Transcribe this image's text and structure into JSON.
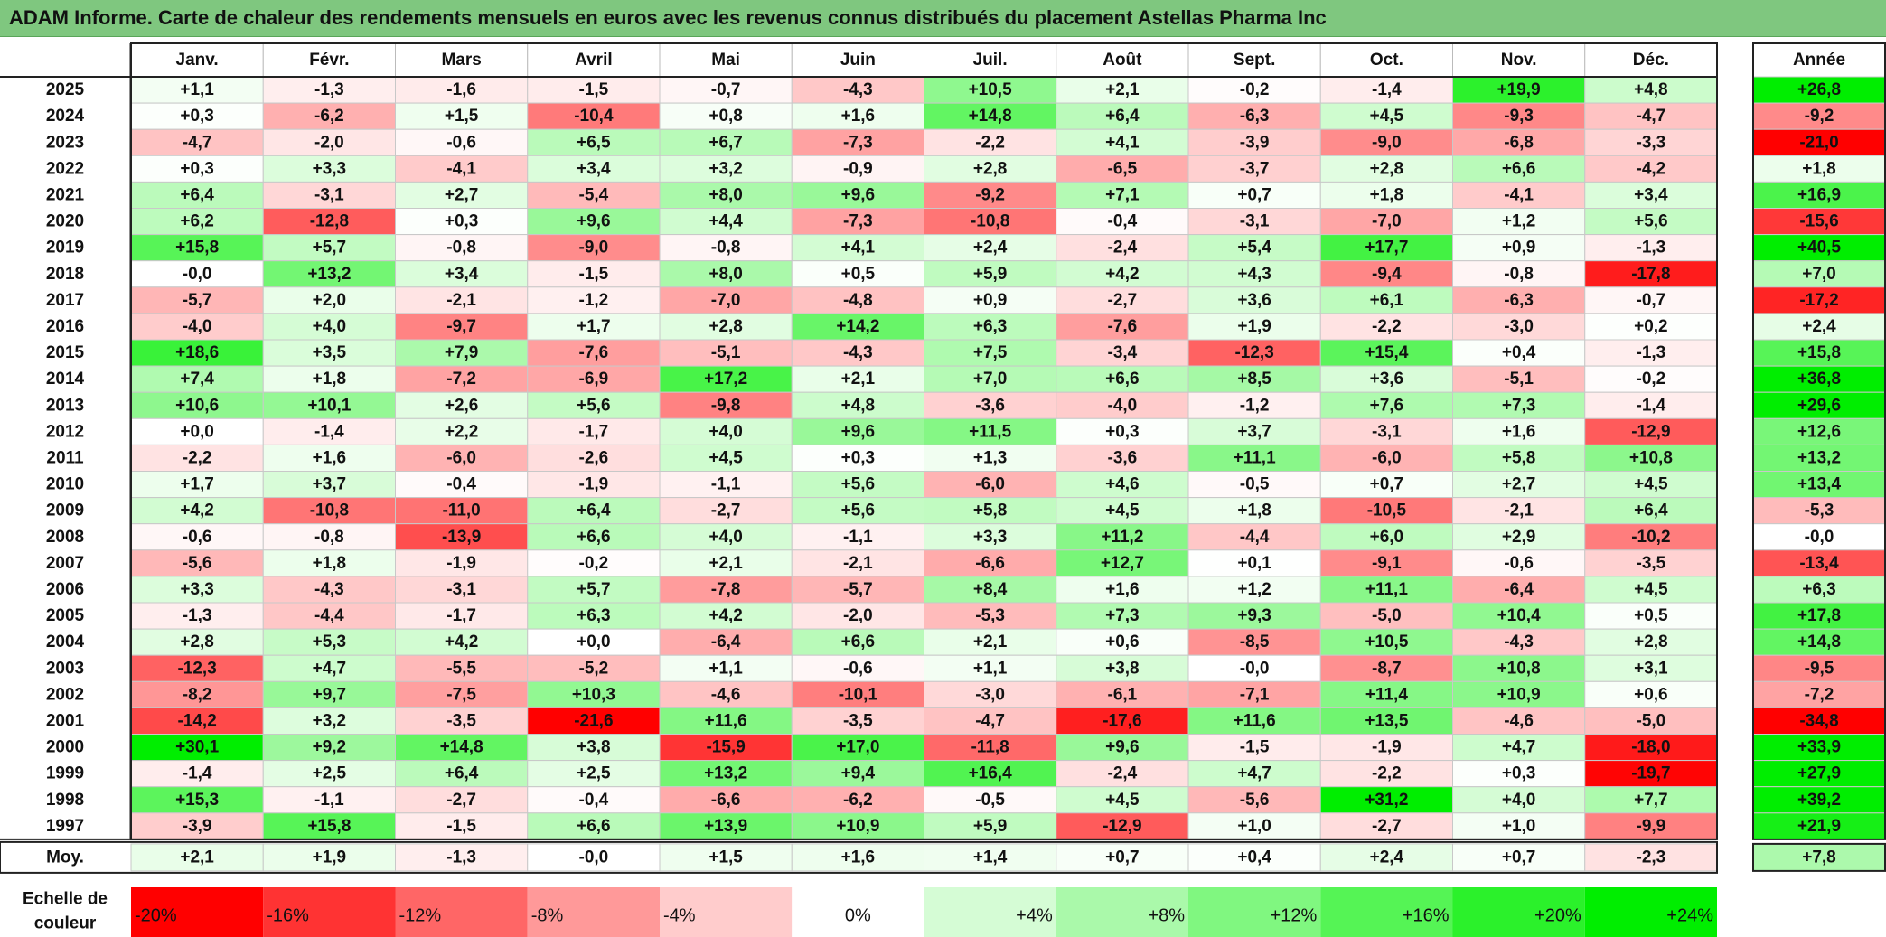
{
  "title": "ADAM Informe. Carte de chaleur des rendements mensuels en euros avec les revenus connus distribués du placement Astellas Pharma Inc",
  "chart_data": {
    "type": "heatmap",
    "columns": [
      "Janv.",
      "Févr.",
      "Mars",
      "Avril",
      "Mai",
      "Juin",
      "Juil.",
      "Août",
      "Sept.",
      "Oct.",
      "Nov.",
      "Déc."
    ],
    "annual_header": "Année",
    "rows": [
      {
        "year": "2025",
        "values": [
          "+1,1",
          "-1,3",
          "-1,6",
          "-1,5",
          "-0,7",
          "-4,3",
          "+10,5",
          "+2,1",
          "-0,2",
          "-1,4",
          "+19,9",
          "+4,8"
        ],
        "annual": "+26,8"
      },
      {
        "year": "2024",
        "values": [
          "+0,3",
          "-6,2",
          "+1,5",
          "-10,4",
          "+0,8",
          "+1,6",
          "+14,8",
          "+6,4",
          "-6,3",
          "+4,5",
          "-9,3",
          "-4,7"
        ],
        "annual": "-9,2"
      },
      {
        "year": "2023",
        "values": [
          "-4,7",
          "-2,0",
          "-0,6",
          "+6,5",
          "+6,7",
          "-7,3",
          "-2,2",
          "+4,1",
          "-3,9",
          "-9,0",
          "-6,8",
          "-3,3"
        ],
        "annual": "-21,0"
      },
      {
        "year": "2022",
        "values": [
          "+0,3",
          "+3,3",
          "-4,1",
          "+3,4",
          "+3,2",
          "-0,9",
          "+2,8",
          "-6,5",
          "-3,7",
          "+2,8",
          "+6,6",
          "-4,2"
        ],
        "annual": "+1,8"
      },
      {
        "year": "2021",
        "values": [
          "+6,4",
          "-3,1",
          "+2,7",
          "-5,4",
          "+8,0",
          "+9,6",
          "-9,2",
          "+7,1",
          "+0,7",
          "+1,8",
          "-4,1",
          "+3,4"
        ],
        "annual": "+16,9"
      },
      {
        "year": "2020",
        "values": [
          "+6,2",
          "-12,8",
          "+0,3",
          "+9,6",
          "+4,4",
          "-7,3",
          "-10,8",
          "-0,4",
          "-3,1",
          "-7,0",
          "+1,2",
          "+5,6"
        ],
        "annual": "-15,6"
      },
      {
        "year": "2019",
        "values": [
          "+15,8",
          "+5,7",
          "-0,8",
          "-9,0",
          "-0,8",
          "+4,1",
          "+2,4",
          "-2,4",
          "+5,4",
          "+17,7",
          "+0,9",
          "-1,3"
        ],
        "annual": "+40,5"
      },
      {
        "year": "2018",
        "values": [
          "-0,0",
          "+13,2",
          "+3,4",
          "-1,5",
          "+8,0",
          "+0,5",
          "+5,9",
          "+4,2",
          "+4,3",
          "-9,4",
          "-0,8",
          "-17,8"
        ],
        "annual": "+7,0"
      },
      {
        "year": "2017",
        "values": [
          "-5,7",
          "+2,0",
          "-2,1",
          "-1,2",
          "-7,0",
          "-4,8",
          "+0,9",
          "-2,7",
          "+3,6",
          "+6,1",
          "-6,3",
          "-0,7"
        ],
        "annual": "-17,2"
      },
      {
        "year": "2016",
        "values": [
          "-4,0",
          "+4,0",
          "-9,7",
          "+1,7",
          "+2,8",
          "+14,2",
          "+6,3",
          "-7,6",
          "+1,9",
          "-2,2",
          "-3,0",
          "+0,2"
        ],
        "annual": "+2,4"
      },
      {
        "year": "2015",
        "values": [
          "+18,6",
          "+3,5",
          "+7,9",
          "-7,6",
          "-5,1",
          "-4,3",
          "+7,5",
          "-3,4",
          "-12,3",
          "+15,4",
          "+0,4",
          "-1,3"
        ],
        "annual": "+15,8"
      },
      {
        "year": "2014",
        "values": [
          "+7,4",
          "+1,8",
          "-7,2",
          "-6,9",
          "+17,2",
          "+2,1",
          "+7,0",
          "+6,6",
          "+8,5",
          "+3,6",
          "-5,1",
          "-0,2"
        ],
        "annual": "+36,8"
      },
      {
        "year": "2013",
        "values": [
          "+10,6",
          "+10,1",
          "+2,6",
          "+5,6",
          "-9,8",
          "+4,8",
          "-3,6",
          "-4,0",
          "-1,2",
          "+7,6",
          "+7,3",
          "-1,4"
        ],
        "annual": "+29,6"
      },
      {
        "year": "2012",
        "values": [
          "+0,0",
          "-1,4",
          "+2,2",
          "-1,7",
          "+4,0",
          "+9,6",
          "+11,5",
          "+0,3",
          "+3,7",
          "-3,1",
          "+1,6",
          "-12,9"
        ],
        "annual": "+12,6"
      },
      {
        "year": "2011",
        "values": [
          "-2,2",
          "+1,6",
          "-6,0",
          "-2,6",
          "+4,5",
          "+0,3",
          "+1,3",
          "-3,6",
          "+11,1",
          "-6,0",
          "+5,8",
          "+10,8"
        ],
        "annual": "+13,2"
      },
      {
        "year": "2010",
        "values": [
          "+1,7",
          "+3,7",
          "-0,4",
          "-1,9",
          "-1,1",
          "+5,6",
          "-6,0",
          "+4,6",
          "-0,5",
          "+0,7",
          "+2,7",
          "+4,5"
        ],
        "annual": "+13,4"
      },
      {
        "year": "2009",
        "values": [
          "+4,2",
          "-10,8",
          "-11,0",
          "+6,4",
          "-2,7",
          "+5,6",
          "+5,8",
          "+4,5",
          "+1,8",
          "-10,5",
          "-2,1",
          "+6,4"
        ],
        "annual": "-5,3"
      },
      {
        "year": "2008",
        "values": [
          "-0,6",
          "-0,8",
          "-13,9",
          "+6,6",
          "+4,0",
          "-1,1",
          "+3,3",
          "+11,2",
          "-4,4",
          "+6,0",
          "+2,9",
          "-10,2"
        ],
        "annual": "-0,0"
      },
      {
        "year": "2007",
        "values": [
          "-5,6",
          "+1,8",
          "-1,9",
          "-0,2",
          "+2,1",
          "-2,1",
          "-6,6",
          "+12,7",
          "+0,1",
          "-9,1",
          "-0,6",
          "-3,5"
        ],
        "annual": "-13,4"
      },
      {
        "year": "2006",
        "values": [
          "+3,3",
          "-4,3",
          "-3,1",
          "+5,7",
          "-7,8",
          "-5,7",
          "+8,4",
          "+1,6",
          "+1,2",
          "+11,1",
          "-6,4",
          "+4,5"
        ],
        "annual": "+6,3"
      },
      {
        "year": "2005",
        "values": [
          "-1,3",
          "-4,4",
          "-1,7",
          "+6,3",
          "+4,2",
          "-2,0",
          "-5,3",
          "+7,3",
          "+9,3",
          "-5,0",
          "+10,4",
          "+0,5"
        ],
        "annual": "+17,8"
      },
      {
        "year": "2004",
        "values": [
          "+2,8",
          "+5,3",
          "+4,2",
          "+0,0",
          "-6,4",
          "+6,6",
          "+2,1",
          "+0,6",
          "-8,5",
          "+10,5",
          "-4,3",
          "+2,8"
        ],
        "annual": "+14,8"
      },
      {
        "year": "2003",
        "values": [
          "-12,3",
          "+4,7",
          "-5,5",
          "-5,2",
          "+1,1",
          "-0,6",
          "+1,1",
          "+3,8",
          "-0,0",
          "-8,7",
          "+10,8",
          "+3,1"
        ],
        "annual": "-9,5"
      },
      {
        "year": "2002",
        "values": [
          "-8,2",
          "+9,7",
          "-7,5",
          "+10,3",
          "-4,6",
          "-10,1",
          "-3,0",
          "-6,1",
          "-7,1",
          "+11,4",
          "+10,9",
          "+0,6"
        ],
        "annual": "-7,2"
      },
      {
        "year": "2001",
        "values": [
          "-14,2",
          "+3,2",
          "-3,5",
          "-21,6",
          "+11,6",
          "-3,5",
          "-4,7",
          "-17,6",
          "+11,6",
          "+13,5",
          "-4,6",
          "-5,0"
        ],
        "annual": "-34,8"
      },
      {
        "year": "2000",
        "values": [
          "+30,1",
          "+9,2",
          "+14,8",
          "+3,8",
          "-15,9",
          "+17,0",
          "-11,8",
          "+9,6",
          "-1,5",
          "-1,9",
          "+4,7",
          "-18,0"
        ],
        "annual": "+33,9"
      },
      {
        "year": "1999",
        "values": [
          "-1,4",
          "+2,5",
          "+6,4",
          "+2,5",
          "+13,2",
          "+9,4",
          "+16,4",
          "-2,4",
          "+4,7",
          "-2,2",
          "+0,3",
          "-19,7"
        ],
        "annual": "+27,9"
      },
      {
        "year": "1998",
        "values": [
          "+15,3",
          "-1,1",
          "-2,7",
          "-0,4",
          "-6,6",
          "-6,2",
          "-0,5",
          "+4,5",
          "-5,6",
          "+31,2",
          "+4,0",
          "+7,7"
        ],
        "annual": "+39,2"
      },
      {
        "year": "1997",
        "values": [
          "-3,9",
          "+15,8",
          "-1,5",
          "+6,6",
          "+13,9",
          "+10,9",
          "+5,9",
          "-12,9",
          "+1,0",
          "-2,7",
          "+1,0",
          "-9,9"
        ],
        "annual": "+21,9"
      }
    ],
    "average_label": "Moy.",
    "average_values": [
      "+2,1",
      "+1,9",
      "-1,3",
      "-0,0",
      "+1,5",
      "+1,6",
      "+1,4",
      "+0,7",
      "+0,4",
      "+2,4",
      "+0,7",
      "-2,3"
    ],
    "average_annual": "+7,8",
    "scale_label": "Echelle de couleur",
    "scale": [
      {
        "label": "-20%",
        "value": -20
      },
      {
        "label": "-16%",
        "value": -16
      },
      {
        "label": "-12%",
        "value": -12
      },
      {
        "label": "-8%",
        "value": -8
      },
      {
        "label": "-4%",
        "value": -4
      },
      {
        "label": "0%",
        "value": 0
      },
      {
        "label": "+4%",
        "value": 4
      },
      {
        "label": "+8%",
        "value": 8
      },
      {
        "label": "+12%",
        "value": 12
      },
      {
        "label": "+16%",
        "value": 16
      },
      {
        "label": "+20%",
        "value": 20
      },
      {
        "label": "+24%",
        "value": 24
      }
    ],
    "colors": {
      "negative_max": "#ff0000",
      "neutral": "#ffffff",
      "positive_max": "#00ee00",
      "title_band": "#7fc77f"
    }
  }
}
